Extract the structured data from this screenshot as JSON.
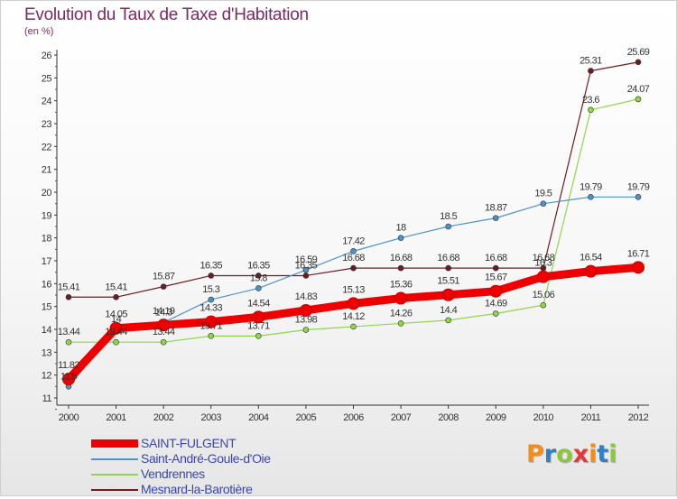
{
  "title": "Evolution du Taux de Taxe d'Habitation",
  "unit": "(en %)",
  "logo": "Proxiti",
  "chart_data": {
    "type": "line",
    "title": "Evolution du Taux de Taxe d'Habitation",
    "ylabel": "(en %)",
    "xlabel": "",
    "x": [
      2000,
      2001,
      2002,
      2003,
      2004,
      2005,
      2006,
      2007,
      2008,
      2009,
      2010,
      2011,
      2012
    ],
    "ylim": [
      11,
      26
    ],
    "yticks": [
      11,
      12,
      13,
      14,
      15,
      16,
      17,
      18,
      19,
      20,
      21,
      22,
      23,
      24,
      25,
      26
    ],
    "grid": false,
    "legend": "bottom-left",
    "series": [
      {
        "name": "SAINT-FULGENT",
        "color": "#ee0000",
        "values": [
          11.82,
          14.05,
          14.19,
          14.33,
          14.54,
          14.83,
          15.13,
          15.36,
          15.51,
          15.67,
          16.3,
          16.54,
          16.71
        ],
        "labels": [
          "11.82",
          "14.05",
          "14.19",
          "14.33",
          "14.54",
          "14.83",
          "15.13",
          "15.36",
          "15.51",
          "15.67",
          "16.3",
          "16.54",
          "16.71"
        ]
      },
      {
        "name": "Saint-André-Goule-d'Oie",
        "color": "#4f92c9",
        "values": [
          11.5,
          14.0,
          14.3,
          15.3,
          15.8,
          16.6,
          17.42,
          18.0,
          18.5,
          18.87,
          19.5,
          19.79,
          19.79
        ],
        "labels": [
          "11.5",
          "14",
          "14.3",
          "15.3",
          "15.8",
          "16.59",
          "17.42",
          "18",
          "18.5",
          "18.87",
          "19.5",
          "19.79",
          "19.79"
        ]
      },
      {
        "name": "Vendrennes",
        "color": "#8fd64a",
        "values": [
          13.44,
          13.44,
          13.44,
          13.71,
          13.71,
          13.98,
          14.12,
          14.26,
          14.4,
          14.69,
          15.06,
          23.6,
          24.07
        ],
        "labels": [
          "13.44",
          "13.44",
          "13.44",
          "13.71",
          "13.71",
          "13.98",
          "14.12",
          "14.26",
          "14.4",
          "14.69",
          "15.06",
          "23.6",
          "24.07"
        ]
      },
      {
        "name": "Mesnard-la-Barotière",
        "color": "#6e1b24",
        "values": [
          15.41,
          15.41,
          15.87,
          16.35,
          16.35,
          16.35,
          16.68,
          16.68,
          16.68,
          16.68,
          16.68,
          25.31,
          25.69
        ],
        "labels": [
          "15.41",
          "15.41",
          "15.87",
          "16.35",
          "16.35",
          "16.35",
          "16.68",
          "16.68",
          "16.68",
          "16.68",
          "16.68",
          "25.31",
          "25.69"
        ]
      }
    ]
  }
}
